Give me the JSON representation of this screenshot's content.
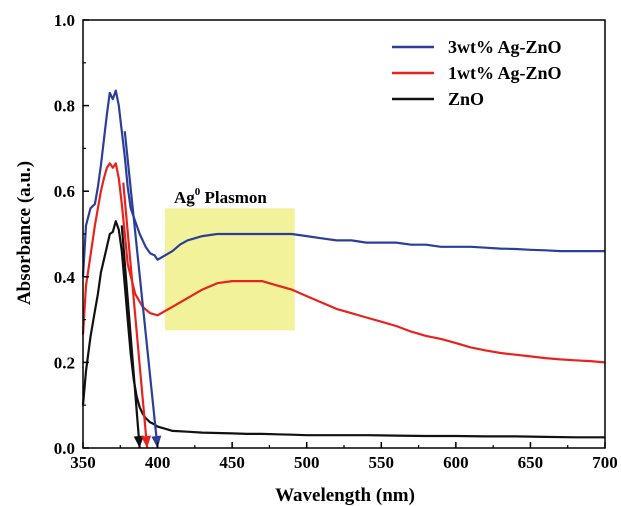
{
  "chart_data": {
    "type": "line",
    "xlabel": "Wavelength (nm)",
    "ylabel": "Absorbance (a.u.)",
    "xlim": [
      350,
      700
    ],
    "ylim": [
      0.0,
      1.0
    ],
    "xticks": [
      350,
      400,
      450,
      500,
      550,
      600,
      650,
      700
    ],
    "yticks": [
      0.0,
      0.2,
      0.4,
      0.6,
      0.8,
      1.0
    ],
    "xtick_labels": [
      "350",
      "400",
      "450",
      "500",
      "550",
      "600",
      "650",
      "700"
    ],
    "ytick_labels": [
      "0.0",
      "0.2",
      "0.4",
      "0.6",
      "0.8",
      "1.0"
    ],
    "grid": false,
    "legend_position": "top-right",
    "annotation": {
      "text_main": "Ag",
      "text_sup": "0",
      "text_rest": " Plasmon",
      "region_x": [
        405,
        492
      ],
      "region_y": [
        0.275,
        0.56
      ],
      "color": "#f0f08a"
    },
    "series": [
      {
        "name": "3wt% Ag-ZnO",
        "color": "#2b3f9a",
        "x": [
          350,
          352,
          355,
          358,
          360,
          362,
          364,
          366,
          368,
          370,
          372,
          374,
          376,
          378,
          380,
          382,
          385,
          388,
          390,
          392,
          395,
          398,
          400,
          405,
          410,
          415,
          420,
          430,
          440,
          450,
          460,
          470,
          480,
          490,
          500,
          510,
          520,
          530,
          540,
          550,
          560,
          570,
          580,
          590,
          600,
          610,
          620,
          630,
          640,
          650,
          660,
          670,
          680,
          690,
          700
        ],
        "y": [
          0.4,
          0.52,
          0.56,
          0.57,
          0.61,
          0.66,
          0.72,
          0.78,
          0.83,
          0.815,
          0.835,
          0.8,
          0.74,
          0.68,
          0.61,
          0.56,
          0.53,
          0.5,
          0.485,
          0.47,
          0.455,
          0.45,
          0.44,
          0.45,
          0.46,
          0.475,
          0.485,
          0.495,
          0.5,
          0.5,
          0.5,
          0.5,
          0.5,
          0.5,
          0.495,
          0.49,
          0.485,
          0.485,
          0.48,
          0.48,
          0.48,
          0.475,
          0.475,
          0.47,
          0.47,
          0.47,
          0.468,
          0.466,
          0.465,
          0.463,
          0.462,
          0.46,
          0.46,
          0.46,
          0.46
        ]
      },
      {
        "name": "1wt% Ag-ZnO",
        "color": "#e8231e",
        "x": [
          350,
          352,
          355,
          358,
          360,
          362,
          364,
          366,
          368,
          370,
          372,
          374,
          376,
          378,
          380,
          385,
          390,
          395,
          400,
          405,
          410,
          420,
          430,
          440,
          450,
          460,
          470,
          480,
          490,
          500,
          510,
          520,
          530,
          540,
          550,
          560,
          570,
          580,
          590,
          600,
          610,
          620,
          630,
          640,
          650,
          660,
          670,
          680,
          690,
          700
        ],
        "y": [
          0.265,
          0.38,
          0.45,
          0.52,
          0.56,
          0.6,
          0.63,
          0.655,
          0.665,
          0.655,
          0.665,
          0.63,
          0.57,
          0.5,
          0.43,
          0.36,
          0.33,
          0.315,
          0.31,
          0.32,
          0.33,
          0.35,
          0.37,
          0.385,
          0.39,
          0.39,
          0.39,
          0.38,
          0.37,
          0.355,
          0.34,
          0.325,
          0.315,
          0.305,
          0.295,
          0.285,
          0.272,
          0.262,
          0.255,
          0.245,
          0.235,
          0.228,
          0.222,
          0.218,
          0.214,
          0.21,
          0.207,
          0.205,
          0.203,
          0.2
        ]
      },
      {
        "name": "ZnO",
        "color": "#111111",
        "x": [
          350,
          352,
          355,
          358,
          360,
          362,
          364,
          366,
          368,
          370,
          372,
          374,
          376,
          378,
          380,
          382,
          384,
          386,
          388,
          390,
          392,
          395,
          398,
          400,
          405,
          410,
          420,
          430,
          440,
          450,
          460,
          470,
          480,
          490,
          500,
          520,
          540,
          560,
          580,
          600,
          620,
          640,
          660,
          680,
          700
        ],
        "y": [
          0.1,
          0.18,
          0.26,
          0.32,
          0.36,
          0.41,
          0.44,
          0.47,
          0.5,
          0.505,
          0.53,
          0.51,
          0.46,
          0.38,
          0.3,
          0.22,
          0.16,
          0.12,
          0.095,
          0.08,
          0.07,
          0.06,
          0.055,
          0.05,
          0.045,
          0.04,
          0.038,
          0.036,
          0.035,
          0.034,
          0.033,
          0.033,
          0.032,
          0.031,
          0.03,
          0.03,
          0.03,
          0.029,
          0.028,
          0.028,
          0.027,
          0.027,
          0.026,
          0.025,
          0.025
        ]
      }
    ],
    "arrows": [
      {
        "series": "ZnO",
        "from": [
          376,
          0.52
        ],
        "to": [
          388,
          0.0
        ]
      },
      {
        "series": "1wt% Ag-ZnO",
        "from": [
          377,
          0.62
        ],
        "to": [
          393,
          0.0
        ]
      },
      {
        "series": "3wt% Ag-ZnO",
        "from": [
          378,
          0.74
        ],
        "to": [
          400,
          0.0
        ]
      }
    ]
  }
}
